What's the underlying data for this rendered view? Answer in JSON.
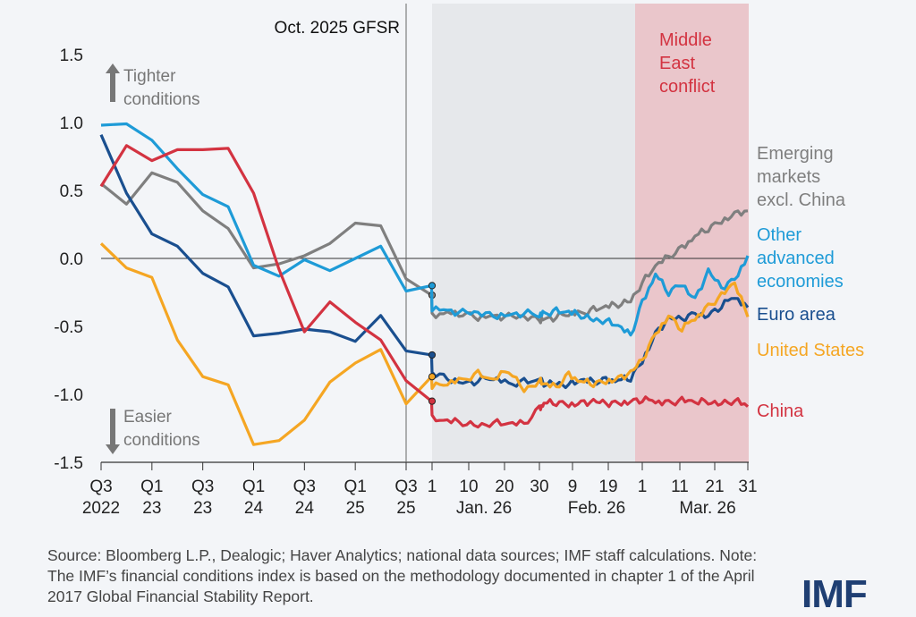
{
  "chart_data": {
    "type": "line",
    "ylim": [
      -1.5,
      1.5
    ],
    "y_ticks": [
      "1.5",
      "1.0",
      "0.5",
      "0.0",
      "-0.5",
      "-1.0",
      "-1.5"
    ],
    "y_tick_values": [
      1.5,
      1.0,
      0.5,
      0.0,
      -0.5,
      -1.0,
      -1.5
    ],
    "x_ticks_quarterly": [
      {
        "top": "Q3",
        "bottom": "2022"
      },
      {
        "top": "Q1",
        "bottom": "23"
      },
      {
        "top": "Q3",
        "bottom": "23"
      },
      {
        "top": "Q1",
        "bottom": "24"
      },
      {
        "top": "Q3",
        "bottom": "24"
      },
      {
        "top": "Q1",
        "bottom": "25"
      },
      {
        "top": "Q3",
        "bottom": "25"
      }
    ],
    "x_ticks_daily": [
      "1",
      "10",
      "20",
      "30",
      "9",
      "19",
      "1",
      "11",
      "21",
      "31"
    ],
    "month_labels": [
      "Jan. 26",
      "Feb. 26",
      "Mar. 26"
    ],
    "annotations": {
      "gfsr": "Oct. 2025 GFSR",
      "tighter": "Tighter conditions",
      "easier": "Easier conditions",
      "conflict": "Middle East conflict"
    },
    "series": [
      {
        "name": "Emerging markets excl. China",
        "color": "#7f7f7f",
        "quarterly": [
          0.55,
          0.4,
          0.63,
          0.56,
          0.35,
          0.22,
          -0.07,
          -0.04,
          0.02,
          0.11,
          0.26,
          0.24,
          -0.15,
          -0.27
        ],
        "jan": [
          -0.41,
          -0.4,
          -0.41,
          -0.43,
          -0.42,
          -0.43,
          -0.44,
          -0.45
        ],
        "feb": [
          -0.44,
          -0.43,
          -0.41,
          -0.4,
          -0.38,
          -0.36,
          -0.34,
          -0.3
        ],
        "mar": [
          -0.18,
          -0.06,
          0.01,
          0.08,
          0.16,
          0.22,
          0.28,
          0.33,
          0.35
        ]
      },
      {
        "name": "Other advanced economies",
        "color": "#1e9bd7",
        "quarterly": [
          0.98,
          0.99,
          0.87,
          0.66,
          0.47,
          0.38,
          -0.05,
          -0.13,
          -0.01,
          -0.09,
          0.0,
          0.09,
          -0.24,
          -0.2
        ],
        "jan": [
          -0.36,
          -0.38,
          -0.4,
          -0.41,
          -0.42,
          -0.41,
          -0.4,
          -0.42
        ],
        "feb": [
          -0.4,
          -0.39,
          -0.4,
          -0.42,
          -0.44,
          -0.46,
          -0.5,
          -0.57
        ],
        "mar": [
          -0.32,
          -0.12,
          -0.25,
          -0.18,
          -0.3,
          -0.1,
          -0.22,
          -0.15,
          0.02
        ]
      },
      {
        "name": "Euro area",
        "color": "#1a4f8f",
        "quarterly": [
          0.91,
          0.48,
          0.18,
          0.09,
          -0.11,
          -0.21,
          -0.57,
          -0.55,
          -0.52,
          -0.54,
          -0.61,
          -0.42,
          -0.68,
          -0.71
        ],
        "jan": [
          -0.85,
          -0.88,
          -0.91,
          -0.9,
          -0.88,
          -0.92,
          -0.91,
          -0.9
        ],
        "feb": [
          -0.92,
          -0.91,
          -0.93,
          -0.9,
          -0.91,
          -0.89,
          -0.9,
          -0.88
        ],
        "mar": [
          -0.75,
          -0.55,
          -0.45,
          -0.45,
          -0.4,
          -0.42,
          -0.35,
          -0.28,
          -0.36
        ]
      },
      {
        "name": "United States",
        "color": "#f5a623",
        "quarterly": [
          0.11,
          -0.07,
          -0.14,
          -0.6,
          -0.87,
          -0.93,
          -1.37,
          -1.34,
          -1.19,
          -0.91,
          -0.77,
          -0.67,
          -1.07,
          -0.87
        ],
        "jan": [
          -0.95,
          -0.92,
          -0.89,
          -0.85,
          -0.9,
          -0.82,
          -0.96,
          -0.9
        ],
        "feb": [
          -0.93,
          -0.95,
          -0.85,
          -0.91,
          -0.92,
          -0.9,
          -0.88,
          -0.85
        ],
        "mar": [
          -0.75,
          -0.55,
          -0.42,
          -0.52,
          -0.44,
          -0.35,
          -0.28,
          -0.18,
          -0.43
        ]
      },
      {
        "name": "China",
        "color": "#d33341",
        "quarterly": [
          0.53,
          0.83,
          0.72,
          0.8,
          0.8,
          0.81,
          0.48,
          -0.08,
          -0.54,
          -0.32,
          -0.47,
          -0.6,
          -0.9,
          -1.05
        ],
        "jan": [
          -1.18,
          -1.2,
          -1.21,
          -1.22,
          -1.21,
          -1.22,
          -1.22,
          -1.1
        ],
        "feb": [
          -1.07,
          -1.06,
          -1.07,
          -1.06,
          -1.06,
          -1.07,
          -1.06,
          -1.05
        ],
        "mar": [
          -1.04,
          -1.05,
          -1.06,
          -1.05,
          -1.06,
          -1.05,
          -1.06,
          -1.05,
          -1.09
        ]
      }
    ]
  },
  "labels": {
    "em": [
      "Emerging",
      "markets",
      "excl. China"
    ],
    "oae": [
      "Other",
      "advanced",
      "economies"
    ],
    "euro": [
      "Euro area"
    ],
    "us": [
      "United States"
    ],
    "china": [
      "China"
    ]
  },
  "footer": {
    "text": "Source: Bloomberg L.P., Dealogic; Haver Analytics; national data sources; IMF staff calculations. Note: The IMF’s financial conditions index is based on the methodology documented in chapter 1 of the April 2017 Global Financial Stability Report."
  },
  "logo": "IMF"
}
